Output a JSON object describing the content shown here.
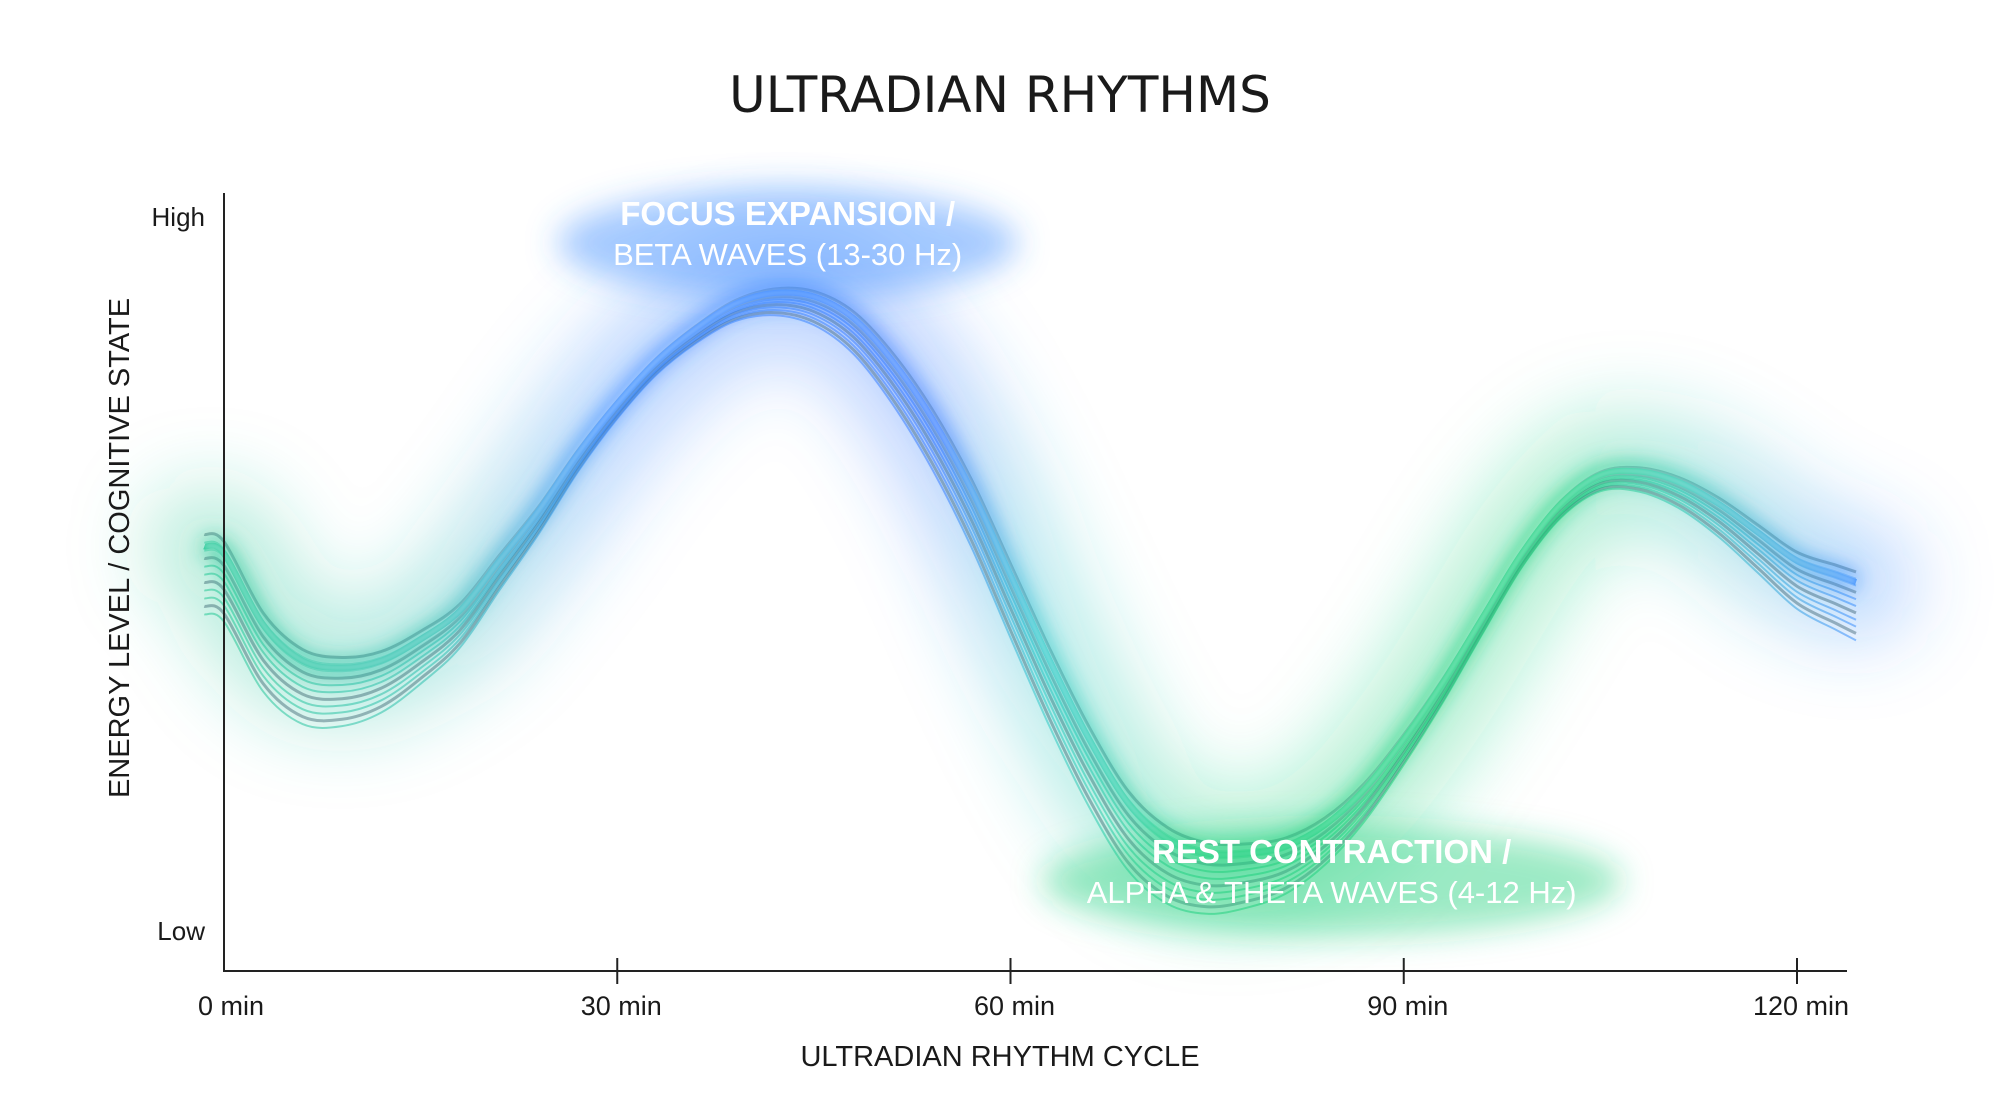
{
  "chart_data": {
    "type": "line",
    "title": "ULTRADIAN RHYTHMS",
    "xlabel": "ULTRADIAN RHYTHM CYCLE",
    "ylabel": "ENERGY LEVEL / COGNITIVE STATE",
    "x_ticks": [
      {
        "value": 0,
        "label": "0 min"
      },
      {
        "value": 30,
        "label": "30 min"
      },
      {
        "value": 60,
        "label": "60 min"
      },
      {
        "value": 90,
        "label": "90 min"
      },
      {
        "value": 120,
        "label": "120 min"
      }
    ],
    "y_ticks": [
      {
        "value": 0,
        "label": "Low"
      },
      {
        "value": 1,
        "label": "High"
      }
    ],
    "xlim": [
      0,
      124
    ],
    "ylim": [
      0,
      1
    ],
    "grid": false,
    "series": [
      {
        "x": [
          -1.5,
          0,
          3,
          6,
          9,
          12,
          15,
          18,
          21,
          24,
          27,
          30,
          33,
          36,
          39,
          42,
          45,
          48,
          51,
          54,
          57,
          60,
          63,
          66,
          69,
          72,
          75,
          78,
          81,
          84,
          87,
          90,
          93,
          96,
          99,
          102,
          105,
          108,
          111,
          114,
          117,
          120,
          123,
          124.5
        ],
        "y": [
          0.54,
          0.53,
          0.43,
          0.38,
          0.37,
          0.38,
          0.41,
          0.45,
          0.52,
          0.59,
          0.67,
          0.74,
          0.8,
          0.845,
          0.88,
          0.895,
          0.89,
          0.86,
          0.8,
          0.72,
          0.62,
          0.5,
          0.38,
          0.27,
          0.18,
          0.13,
          0.11,
          0.11,
          0.12,
          0.15,
          0.2,
          0.27,
          0.35,
          0.44,
          0.53,
          0.6,
          0.64,
          0.645,
          0.63,
          0.6,
          0.56,
          0.52,
          0.5,
          0.49
        ]
      }
    ],
    "annotations": [
      {
        "line1": "FOCUS EXPANSION /",
        "line2": "BETA WAVES (13-30 Hz)",
        "x": 43,
        "y": 0.98
      },
      {
        "line1": "REST CONTRACTION /",
        "line2": "ALPHA & THETA WAVES (4-12 Hz)",
        "x": 84.5,
        "y": 0.1
      }
    ],
    "colors": {
      "focus": "#3b8cff",
      "rest": "#1fd17e",
      "highlight": "#eafcff",
      "axis": "#222222",
      "text": "#1a1a1a"
    }
  }
}
